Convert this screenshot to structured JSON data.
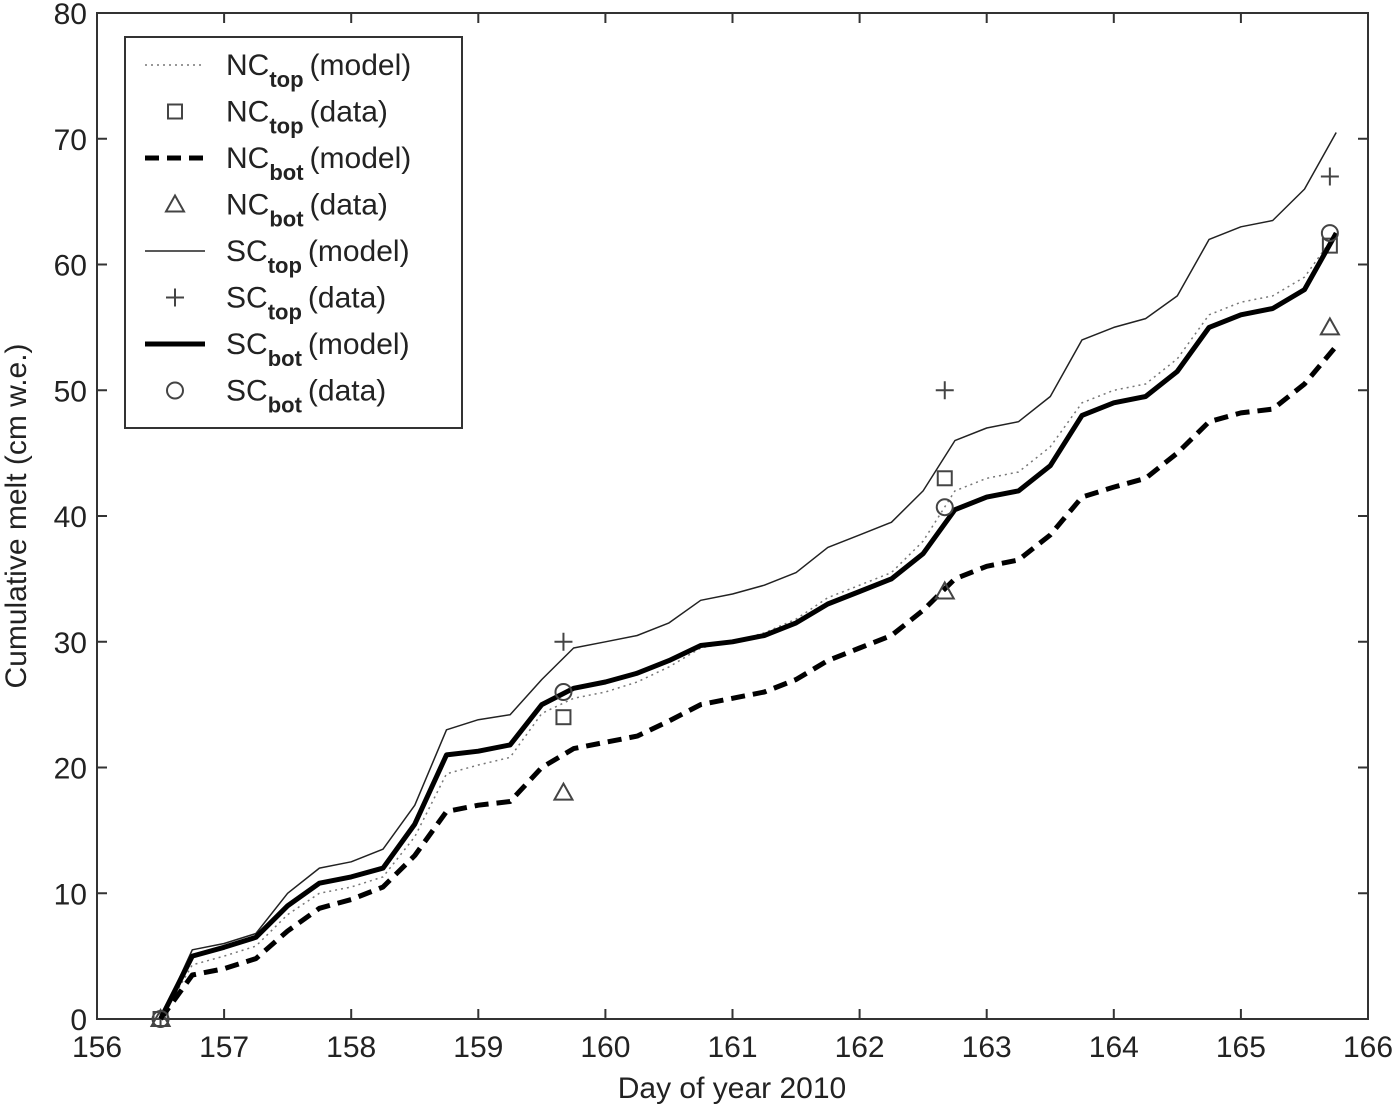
{
  "chart_data": {
    "type": "line",
    "x_label": "Day of year 2010",
    "y_label": "Cumulative melt (cm w.e.)",
    "xlim": [
      156,
      166
    ],
    "ylim": [
      0,
      80
    ],
    "xticks": [
      156,
      157,
      158,
      159,
      160,
      161,
      162,
      163,
      164,
      165,
      166
    ],
    "yticks": [
      0,
      10,
      20,
      30,
      40,
      50,
      60,
      70,
      80
    ],
    "legend": "upper left",
    "series": [
      {
        "name": {
          "base": "NC",
          "sub": "top",
          "note": "(model)"
        },
        "style": "dotted",
        "width": 1.5,
        "color": "#777777",
        "x": [
          156.5,
          156.75,
          157,
          157.25,
          157.5,
          157.75,
          158,
          158.25,
          158.5,
          158.75,
          159,
          159.25,
          159.5,
          159.75,
          160,
          160.25,
          160.5,
          160.75,
          161,
          161.25,
          161.5,
          161.75,
          162,
          162.25,
          162.5,
          162.75,
          163,
          163.25,
          163.5,
          163.75,
          164,
          164.25,
          164.5,
          164.75,
          165,
          165.25,
          165.5,
          165.75
        ],
        "values": [
          0,
          4.3,
          5,
          5.8,
          8.3,
          10,
          10.5,
          11.3,
          14.5,
          19.5,
          20.2,
          20.8,
          24.3,
          25.5,
          26,
          26.8,
          28,
          29.5,
          30,
          30.7,
          31.8,
          33.5,
          34.5,
          35.5,
          38,
          42,
          43,
          43.5,
          45.5,
          49,
          50,
          50.5,
          52.5,
          56,
          57,
          57.5,
          59,
          62.5
        ]
      },
      {
        "name": {
          "base": "NC",
          "sub": "top",
          "note": "(data)"
        },
        "marker": "square",
        "color": "#444444",
        "x": [
          156.5,
          159.67,
          162.67,
          165.7
        ],
        "values": [
          0,
          24,
          43,
          61.5
        ]
      },
      {
        "name": {
          "base": "NC",
          "sub": "bot",
          "note": "(model)"
        },
        "style": "dashed",
        "width": 5,
        "color": "#000000",
        "x": [
          156.5,
          156.75,
          157,
          157.25,
          157.5,
          157.75,
          158,
          158.25,
          158.5,
          158.75,
          159,
          159.25,
          159.5,
          159.75,
          160,
          160.25,
          160.5,
          160.75,
          161,
          161.25,
          161.5,
          161.75,
          162,
          162.25,
          162.5,
          162.75,
          163,
          163.25,
          163.5,
          163.75,
          164,
          164.25,
          164.5,
          164.75,
          165,
          165.25,
          165.5,
          165.75
        ],
        "values": [
          0,
          3.5,
          4,
          4.8,
          7,
          8.8,
          9.5,
          10.5,
          13,
          16.5,
          17,
          17.3,
          20,
          21.5,
          22,
          22.5,
          23.7,
          25,
          25.5,
          26,
          27,
          28.5,
          29.5,
          30.5,
          32.5,
          35,
          36,
          36.5,
          38.5,
          41.5,
          42.3,
          43,
          45,
          47.5,
          48.2,
          48.5,
          50.5,
          53.5
        ]
      },
      {
        "name": {
          "base": "NC",
          "sub": "bot",
          "note": "(data)"
        },
        "marker": "triangle",
        "color": "#444444",
        "x": [
          156.5,
          159.67,
          162.67,
          165.7
        ],
        "values": [
          0,
          18,
          34,
          55
        ]
      },
      {
        "name": {
          "base": "SC",
          "sub": "top",
          "note": "(model)"
        },
        "style": "solid",
        "width": 1.5,
        "color": "#222222",
        "x": [
          156.5,
          156.75,
          157,
          157.25,
          157.5,
          157.75,
          158,
          158.25,
          158.5,
          158.75,
          159,
          159.25,
          159.5,
          159.75,
          160,
          160.25,
          160.5,
          160.75,
          161,
          161.25,
          161.5,
          161.75,
          162,
          162.25,
          162.5,
          162.75,
          163,
          163.25,
          163.5,
          163.75,
          164,
          164.25,
          164.5,
          164.75,
          165,
          165.25,
          165.5,
          165.75
        ],
        "values": [
          0,
          5.5,
          6,
          6.8,
          10,
          12,
          12.5,
          13.5,
          17,
          23,
          23.8,
          24.2,
          27,
          29.5,
          30,
          30.5,
          31.5,
          33.3,
          33.8,
          34.5,
          35.5,
          37.5,
          38.5,
          39.5,
          42,
          46,
          47,
          47.5,
          49.5,
          54,
          55,
          55.7,
          57.5,
          62,
          63,
          63.5,
          66,
          70.5
        ]
      },
      {
        "name": {
          "base": "SC",
          "sub": "top",
          "note": "(data)"
        },
        "marker": "plus",
        "color": "#444444",
        "x": [
          156.5,
          159.67,
          162.67,
          165.7
        ],
        "values": [
          0,
          30,
          50,
          67
        ]
      },
      {
        "name": {
          "base": "SC",
          "sub": "bot",
          "note": "(model)"
        },
        "style": "solid",
        "width": 5,
        "color": "#000000",
        "x": [
          156.5,
          156.75,
          157,
          157.25,
          157.5,
          157.75,
          158,
          158.25,
          158.5,
          158.75,
          159,
          159.25,
          159.5,
          159.75,
          160,
          160.25,
          160.5,
          160.75,
          161,
          161.25,
          161.5,
          161.75,
          162,
          162.25,
          162.5,
          162.75,
          163,
          163.25,
          163.5,
          163.75,
          164,
          164.25,
          164.5,
          164.75,
          165,
          165.25,
          165.5,
          165.75
        ],
        "values": [
          0,
          5,
          5.7,
          6.5,
          9,
          10.8,
          11.3,
          12,
          15.5,
          21,
          21.3,
          21.8,
          25,
          26.3,
          26.8,
          27.5,
          28.5,
          29.7,
          30,
          30.5,
          31.5,
          33,
          34,
          35,
          37,
          40.5,
          41.5,
          42,
          44,
          48,
          49,
          49.5,
          51.5,
          55,
          56,
          56.5,
          58,
          62.5
        ]
      },
      {
        "name": {
          "base": "SC",
          "sub": "bot",
          "note": "(data)"
        },
        "marker": "circle",
        "color": "#444444",
        "x": [
          156.5,
          159.67,
          162.67,
          165.7
        ],
        "values": [
          0,
          26,
          40.7,
          62.5
        ]
      }
    ]
  }
}
